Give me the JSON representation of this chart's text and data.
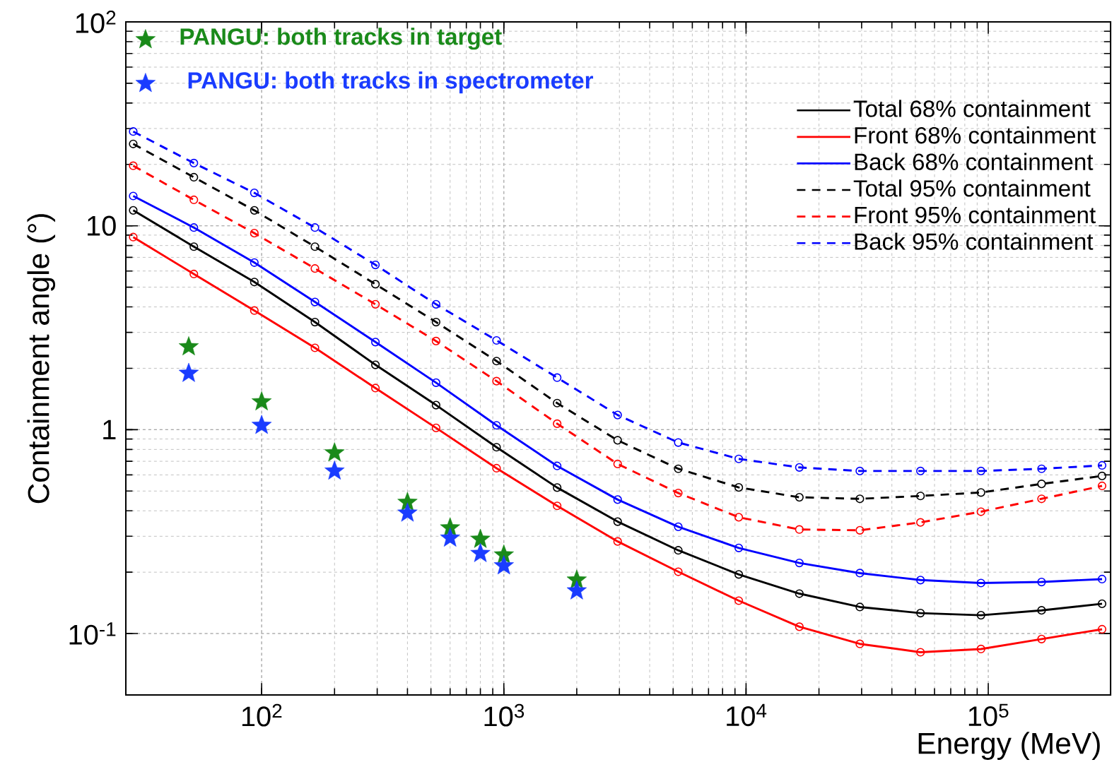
{
  "chart_data": {
    "type": "line",
    "xlabel": "Energy (MeV)",
    "ylabel": "Containment angle (°)",
    "log": "xy",
    "grid": true,
    "legend": "top right",
    "xlim": [
      27.5,
      320000
    ],
    "ylim": [
      0.05,
      100
    ],
    "xticks": [
      {
        "value": 100,
        "label": "10$^{2}$"
      },
      {
        "value": 1000,
        "label": "10$^{3}$"
      },
      {
        "value": 10000,
        "label": "10$^{4}$"
      },
      {
        "value": 100000,
        "label": "10$^{5}$"
      }
    ],
    "yticks": [
      {
        "value": 0.1,
        "label": "10$^{-1}$"
      },
      1,
      10,
      {
        "value": 100,
        "label": "10$^{2}$"
      }
    ],
    "x": [
      29.5,
      52.5,
      93.3,
      166,
      295,
      525,
      933,
      1660,
      2950,
      5250,
      9330,
      16600,
      29500,
      52500,
      93300,
      166000,
      295000
    ],
    "series": [
      {
        "name": "Total 68% containment",
        "color": "#000000",
        "marker": "circle",
        "line_style": "solid",
        "values": [
          11.9,
          7.9,
          5.3,
          3.37,
          2.08,
          1.32,
          0.82,
          0.52,
          0.354,
          0.256,
          0.195,
          0.157,
          0.135,
          0.126,
          0.123,
          0.13,
          0.14
        ]
      },
      {
        "name": "Front 68% containment",
        "color": "#ff0000",
        "marker": "circle",
        "line_style": "solid",
        "values": [
          8.8,
          5.8,
          3.84,
          2.52,
          1.6,
          1.02,
          0.647,
          0.423,
          0.283,
          0.201,
          0.145,
          0.108,
          0.089,
          0.081,
          0.084,
          0.094,
          0.105
        ]
      },
      {
        "name": "Back 68% containment",
        "color": "#0000ff",
        "marker": "circle",
        "line_style": "solid",
        "values": [
          14.0,
          9.8,
          6.6,
          4.23,
          2.69,
          1.7,
          1.05,
          0.664,
          0.454,
          0.334,
          0.263,
          0.222,
          0.198,
          0.183,
          0.177,
          0.179,
          0.185
        ]
      },
      {
        "name": "Total 95% containment",
        "color": "#000000",
        "marker": "circle",
        "line_style": "dashed",
        "values": [
          25.2,
          17.3,
          11.9,
          7.9,
          5.17,
          3.37,
          2.17,
          1.35,
          0.887,
          0.643,
          0.521,
          0.466,
          0.458,
          0.473,
          0.492,
          0.542,
          0.593
        ]
      },
      {
        "name": "Front 95% containment",
        "color": "#ff0000",
        "marker": "circle",
        "line_style": "dashed",
        "values": [
          19.7,
          13.4,
          9.2,
          6.17,
          4.12,
          2.72,
          1.73,
          1.07,
          0.679,
          0.489,
          0.372,
          0.324,
          0.321,
          0.351,
          0.396,
          0.458,
          0.53
        ]
      },
      {
        "name": "Back 95% containment",
        "color": "#0000ff",
        "marker": "circle",
        "line_style": "dashed",
        "values": [
          29,
          20.3,
          14.5,
          9.8,
          6.43,
          4.12,
          2.74,
          1.8,
          1.18,
          0.865,
          0.719,
          0.653,
          0.627,
          0.627,
          0.627,
          0.643,
          0.668
        ]
      },
      {
        "name": "PANGU: both tracks in target",
        "type": "scatter",
        "color": "#1a8a1a",
        "marker": "star",
        "x": [
          50,
          100,
          200,
          400,
          600,
          800,
          1000,
          2000
        ],
        "values": [
          2.55,
          1.37,
          0.77,
          0.44,
          0.33,
          0.29,
          0.243,
          0.183
        ]
      },
      {
        "name": "PANGU: both tracks in spectrometer",
        "type": "scatter",
        "color": "#1a3cff",
        "marker": "star",
        "x": [
          50,
          100,
          200,
          400,
          600,
          800,
          1000,
          2000
        ],
        "values": [
          1.89,
          1.05,
          0.627,
          0.39,
          0.294,
          0.247,
          0.215,
          0.162
        ]
      }
    ]
  }
}
